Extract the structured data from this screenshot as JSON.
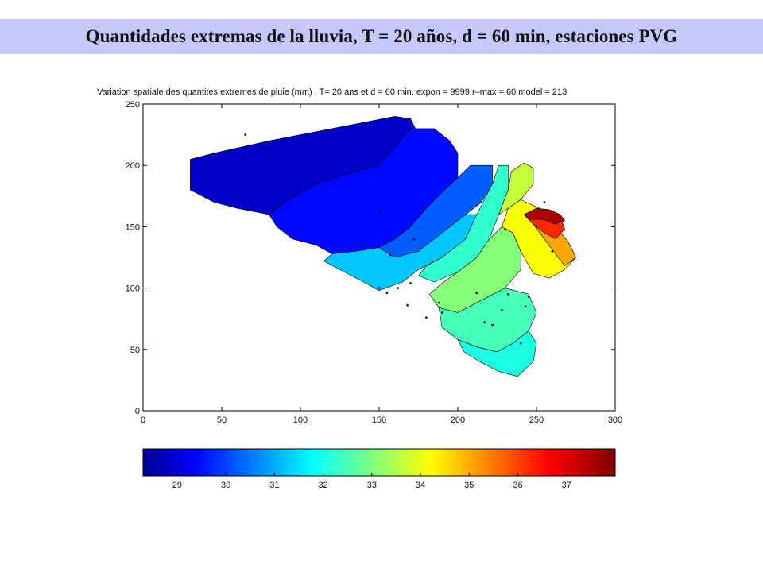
{
  "slide": {
    "title": "Quantidades extremas de la lluvia, T = 20 años, d = 60 min, estaciones PVG"
  },
  "chart_data": {
    "type": "heatmap",
    "title": "Variation spatiale des quantites extremes de pluie (mm) , T= 20 ans et d = 60 min. expon = 9999 r–max = 60 model = 213",
    "xlim": [
      0,
      300
    ],
    "ylim": [
      0,
      250
    ],
    "x_ticks": [
      "0",
      "50",
      "100",
      "150",
      "200",
      "250",
      "300"
    ],
    "y_ticks": [
      "0",
      "50",
      "100",
      "150",
      "200",
      "250"
    ],
    "colorbar": {
      "range": [
        28.3,
        38.0
      ],
      "ticks": [
        "29",
        "30",
        "31",
        "32",
        "33",
        "34",
        "35",
        "36",
        "37"
      ],
      "colormap": "jet"
    },
    "stations": [
      [
        45,
        210
      ],
      [
        65,
        225
      ],
      [
        110,
        185
      ],
      [
        150,
        163
      ],
      [
        157,
        127
      ],
      [
        172,
        140
      ],
      [
        150,
        100
      ],
      [
        155,
        96
      ],
      [
        162,
        100
      ],
      [
        170,
        104
      ],
      [
        168,
        86
      ],
      [
        188,
        88
      ],
      [
        180,
        76
      ],
      [
        190,
        80
      ],
      [
        212,
        96
      ],
      [
        232,
        95
      ],
      [
        217,
        72
      ],
      [
        222,
        70
      ],
      [
        228,
        82
      ],
      [
        260,
        130
      ],
      [
        245,
        93
      ],
      [
        243,
        85
      ],
      [
        240,
        55
      ],
      [
        250,
        150
      ],
      [
        230,
        148
      ],
      [
        255,
        170
      ]
    ],
    "zones": [
      {
        "value": 29.0,
        "outline": [
          [
            30,
            205
          ],
          [
            45,
            210
          ],
          [
            80,
            220
          ],
          [
            120,
            230
          ],
          [
            160,
            240
          ],
          [
            170,
            238
          ],
          [
            175,
            225
          ],
          [
            170,
            205
          ],
          [
            155,
            200
          ],
          [
            135,
            195
          ],
          [
            120,
            185
          ],
          [
            100,
            170
          ],
          [
            80,
            160
          ],
          [
            60,
            165
          ],
          [
            45,
            170
          ],
          [
            30,
            180
          ]
        ]
      },
      {
        "value": 29.6,
        "outline": [
          [
            90,
            170
          ],
          [
            110,
            185
          ],
          [
            135,
            195
          ],
          [
            150,
            200
          ],
          [
            160,
            215
          ],
          [
            170,
            230
          ],
          [
            185,
            230
          ],
          [
            195,
            220
          ],
          [
            200,
            210
          ],
          [
            200,
            190
          ],
          [
            190,
            178
          ],
          [
            180,
            165
          ],
          [
            170,
            150
          ],
          [
            160,
            140
          ],
          [
            150,
            133
          ],
          [
            135,
            130
          ],
          [
            120,
            128
          ],
          [
            110,
            135
          ],
          [
            95,
            140
          ],
          [
            85,
            150
          ],
          [
            80,
            160
          ]
        ]
      },
      {
        "value": 30.4,
        "outline": [
          [
            150,
            133
          ],
          [
            160,
            140
          ],
          [
            170,
            150
          ],
          [
            180,
            165
          ],
          [
            190,
            178
          ],
          [
            200,
            190
          ],
          [
            208,
            200
          ],
          [
            222,
            200
          ],
          [
            222,
            185
          ],
          [
            215,
            170
          ],
          [
            205,
            160
          ],
          [
            195,
            150
          ],
          [
            185,
            140
          ],
          [
            175,
            130
          ],
          [
            160,
            125
          ]
        ]
      },
      {
        "value": 31.4,
        "outline": [
          [
            120,
            128
          ],
          [
            135,
            130
          ],
          [
            150,
            133
          ],
          [
            160,
            125
          ],
          [
            175,
            130
          ],
          [
            185,
            140
          ],
          [
            195,
            150
          ],
          [
            205,
            160
          ],
          [
            212,
            160
          ],
          [
            205,
            140
          ],
          [
            190,
            125
          ],
          [
            175,
            115
          ],
          [
            165,
            105
          ],
          [
            150,
            98
          ],
          [
            140,
            105
          ],
          [
            125,
            115
          ],
          [
            115,
            122
          ]
        ]
      },
      {
        "value": 32.4,
        "outline": [
          [
            190,
            125
          ],
          [
            205,
            140
          ],
          [
            212,
            160
          ],
          [
            222,
            185
          ],
          [
            226,
            200
          ],
          [
            232,
            200
          ],
          [
            232,
            180
          ],
          [
            226,
            160
          ],
          [
            220,
            140
          ],
          [
            212,
            125
          ],
          [
            200,
            113
          ],
          [
            185,
            105
          ],
          [
            175,
            110
          ],
          [
            180,
            118
          ]
        ]
      },
      {
        "value": 33.2,
        "outline": [
          [
            200,
            113
          ],
          [
            212,
            125
          ],
          [
            220,
            140
          ],
          [
            228,
            150
          ],
          [
            235,
            145
          ],
          [
            240,
            130
          ],
          [
            240,
            115
          ],
          [
            230,
            100
          ],
          [
            215,
            90
          ],
          [
            200,
            80
          ],
          [
            188,
            84
          ],
          [
            182,
            95
          ],
          [
            190,
            104
          ]
        ]
      },
      {
        "value": 32.6,
        "outline": [
          [
            188,
            84
          ],
          [
            200,
            80
          ],
          [
            215,
            90
          ],
          [
            230,
            100
          ],
          [
            245,
            95
          ],
          [
            250,
            80
          ],
          [
            245,
            65
          ],
          [
            235,
            55
          ],
          [
            225,
            48
          ],
          [
            212,
            52
          ],
          [
            200,
            58
          ],
          [
            190,
            68
          ]
        ]
      },
      {
        "value": 32.2,
        "outline": [
          [
            200,
            58
          ],
          [
            212,
            52
          ],
          [
            225,
            48
          ],
          [
            235,
            55
          ],
          [
            245,
            65
          ],
          [
            250,
            55
          ],
          [
            248,
            40
          ],
          [
            238,
            28
          ],
          [
            226,
            32
          ],
          [
            214,
            40
          ],
          [
            204,
            48
          ]
        ]
      },
      {
        "value": 33.8,
        "outline": [
          [
            226,
            160
          ],
          [
            232,
            180
          ],
          [
            234,
            195
          ],
          [
            242,
            202
          ],
          [
            248,
            198
          ],
          [
            248,
            185
          ],
          [
            240,
            172
          ],
          [
            232,
            165
          ]
        ]
      },
      {
        "value": 34.3,
        "outline": [
          [
            240,
            130
          ],
          [
            235,
            145
          ],
          [
            228,
            150
          ],
          [
            232,
            165
          ],
          [
            240,
            172
          ],
          [
            252,
            165
          ],
          [
            262,
            150
          ],
          [
            270,
            138
          ],
          [
            275,
            125
          ],
          [
            268,
            115
          ],
          [
            258,
            108
          ],
          [
            248,
            112
          ]
        ]
      },
      {
        "value": 35.2,
        "outline": [
          [
            252,
            165
          ],
          [
            262,
            150
          ],
          [
            270,
            138
          ],
          [
            275,
            125
          ],
          [
            268,
            118
          ],
          [
            262,
            128
          ],
          [
            255,
            140
          ],
          [
            248,
            152
          ],
          [
            242,
            160
          ]
        ]
      },
      {
        "value": 36.4,
        "outline": [
          [
            242,
            160
          ],
          [
            248,
            152
          ],
          [
            255,
            145
          ],
          [
            262,
            140
          ],
          [
            268,
            148
          ],
          [
            265,
            158
          ],
          [
            258,
            164
          ]
        ]
      },
      {
        "value": 37.6,
        "outline": [
          [
            242,
            160
          ],
          [
            250,
            165
          ],
          [
            258,
            164
          ],
          [
            265,
            160
          ],
          [
            268,
            155
          ],
          [
            262,
            152
          ],
          [
            254,
            156
          ],
          [
            246,
            156
          ]
        ]
      }
    ]
  }
}
